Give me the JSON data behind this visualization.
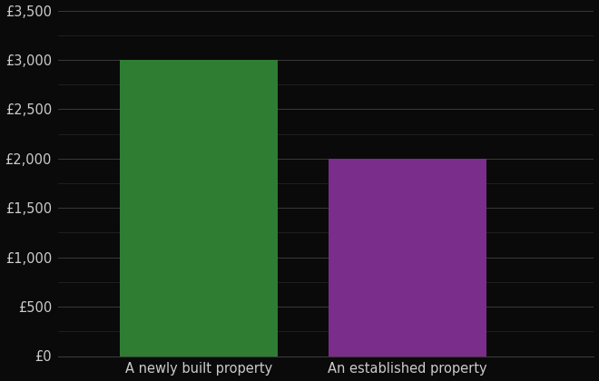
{
  "categories": [
    "A newly built property",
    "An established property"
  ],
  "values": [
    3000,
    2000
  ],
  "bar_colors": [
    "#2e7d32",
    "#7b2d8b"
  ],
  "background_color": "#0a0a0a",
  "text_color": "#cccccc",
  "grid_color": "#3a3a3a",
  "ylim": [
    0,
    3500
  ],
  "yticks": [
    0,
    500,
    1000,
    1500,
    2000,
    2500,
    3000,
    3500
  ],
  "bar_width": 0.28,
  "tick_fontsize": 10.5,
  "label_fontsize": 10.5,
  "x_positions": [
    0.25,
    0.62
  ],
  "xlim": [
    0.0,
    0.95
  ]
}
